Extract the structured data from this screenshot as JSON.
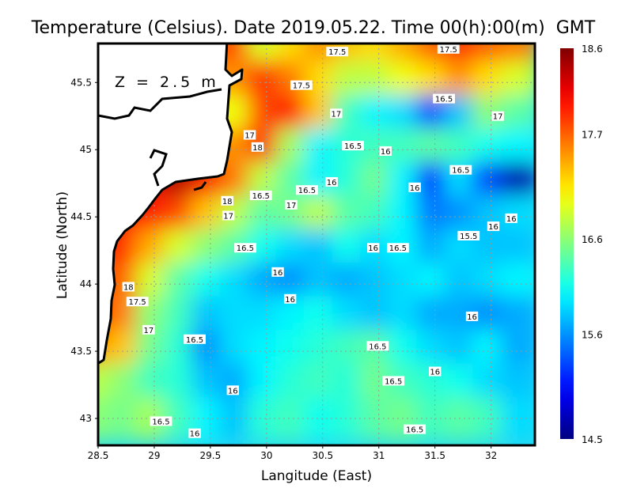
{
  "chart_data": {
    "type": "heatmap",
    "title": "Temperature (Celsius). Date 2019.05.22. Time 00(h):00(m)  GMT",
    "xlabel": "Langitude (East)",
    "ylabel": "Latitude (North)",
    "annotation": "Z = 2.5 m",
    "xlim": [
      28.5,
      32.39
    ],
    "ylim": [
      42.8,
      45.79
    ],
    "xticks": [
      28.5,
      29,
      29.5,
      30,
      30.5,
      31,
      31.5,
      32
    ],
    "xtick_labels": [
      "28.5",
      "29",
      "29.5",
      "30",
      "30.5",
      "31",
      "31.5",
      "32"
    ],
    "yticks": [
      43,
      43.5,
      44,
      44.5,
      45,
      45.5
    ],
    "ytick_labels": [
      "43",
      "43.5",
      "44",
      "44.5",
      "45",
      "45.5"
    ],
    "grid": true,
    "colorbar": {
      "range": [
        14.5,
        18.6
      ],
      "tick_values": [
        18.6,
        17.7,
        16.6,
        15.6,
        14.5
      ],
      "tick_labels": [
        "18.6",
        "17.7",
        "16.6",
        "15.6",
        "14.5"
      ],
      "colormap": "jet",
      "placement": "right"
    },
    "grid_lon": [
      28.5,
      28.75,
      29.0,
      29.25,
      29.5,
      29.75,
      30.0,
      30.25,
      30.5,
      30.75,
      31.0,
      31.25,
      31.5,
      31.75,
      32.0,
      32.25
    ],
    "grid_lat": [
      45.75,
      45.5,
      45.25,
      45.0,
      44.75,
      44.5,
      44.25,
      44.0,
      43.75,
      43.5,
      43.25,
      43.0
    ],
    "values": [
      [
        null,
        null,
        null,
        null,
        null,
        17.8,
        16.9,
        17.2,
        17.5,
        17.3,
        17.2,
        17.4,
        17.7,
        17.9,
        17.7,
        17.6
      ],
      [
        null,
        null,
        null,
        null,
        null,
        17.5,
        17.9,
        17.6,
        17.2,
        16.8,
        16.8,
        17.0,
        17.2,
        17.5,
        17.2,
        16.9
      ],
      [
        null,
        null,
        null,
        null,
        null,
        17.0,
        17.8,
        18.0,
        17.3,
        16.3,
        16.0,
        15.9,
        15.3,
        15.8,
        16.6,
        16.4
      ],
      [
        null,
        null,
        null,
        null,
        null,
        17.5,
        17.9,
        16.7,
        16.0,
        16.2,
        16.3,
        16.3,
        16.4,
        16.3,
        16.1,
        16.0
      ],
      [
        null,
        null,
        18.2,
        18.4,
        18.1,
        17.6,
        16.8,
        16.4,
        16.0,
        16.2,
        16.5,
        16.0,
        15.2,
        15.9,
        15.3,
        14.7
      ],
      [
        null,
        18.0,
        18.0,
        17.8,
        17.3,
        16.8,
        16.4,
        16.5,
        16.8,
        16.4,
        16.3,
        16.0,
        15.5,
        15.6,
        15.8,
        15.9
      ],
      [
        null,
        17.9,
        17.4,
        16.9,
        16.6,
        16.4,
        16.1,
        15.9,
        15.8,
        16.1,
        15.9,
        16.0,
        15.7,
        15.9,
        15.8,
        15.8
      ],
      [
        null,
        17.7,
        16.9,
        16.4,
        16.1,
        15.9,
        15.7,
        15.6,
        15.8,
        15.7,
        15.8,
        15.9,
        16.0,
        15.8,
        15.9,
        16.0
      ],
      [
        17.8,
        17.6,
        16.6,
        16.3,
        15.8,
        15.9,
        15.9,
        16.0,
        16.1,
        15.9,
        15.8,
        15.9,
        15.7,
        15.7,
        15.6,
        15.7
      ],
      [
        17.5,
        17.3,
        16.5,
        16.2,
        15.6,
        15.9,
        16.0,
        16.1,
        16.2,
        16.3,
        16.4,
        16.1,
        15.9,
        15.8,
        16.0,
        15.7
      ],
      [
        16.8,
        16.6,
        16.3,
        16.2,
        15.8,
        15.7,
        16.0,
        16.2,
        16.3,
        16.2,
        16.5,
        16.3,
        16.2,
        16.1,
        15.9,
        15.8
      ],
      [
        16.6,
        16.5,
        16.7,
        16.3,
        16.0,
        15.8,
        16.2,
        16.3,
        16.1,
        16.2,
        16.4,
        16.5,
        16.3,
        16.4,
        16.3,
        15.9
      ]
    ],
    "contour_labels": [
      {
        "text": "17.5",
        "lon": 30.63,
        "lat": 45.73
      },
      {
        "text": "17.5",
        "lon": 31.62,
        "lat": 45.75
      },
      {
        "text": "17.5",
        "lon": 30.31,
        "lat": 45.48
      },
      {
        "text": "16.5",
        "lon": 31.58,
        "lat": 45.38
      },
      {
        "text": "17",
        "lon": 30.62,
        "lat": 45.27
      },
      {
        "text": "17",
        "lon": 32.06,
        "lat": 45.25
      },
      {
        "text": "17",
        "lon": 29.85,
        "lat": 45.11
      },
      {
        "text": "18",
        "lon": 29.92,
        "lat": 45.02
      },
      {
        "text": "16.5",
        "lon": 30.77,
        "lat": 45.03
      },
      {
        "text": "16",
        "lon": 31.06,
        "lat": 44.99
      },
      {
        "text": "16.5",
        "lon": 31.73,
        "lat": 44.85
      },
      {
        "text": "16",
        "lon": 30.58,
        "lat": 44.76
      },
      {
        "text": "16",
        "lon": 31.32,
        "lat": 44.72
      },
      {
        "text": "16.5",
        "lon": 30.36,
        "lat": 44.7
      },
      {
        "text": "16.5",
        "lon": 29.95,
        "lat": 44.66
      },
      {
        "text": "18",
        "lon": 29.65,
        "lat": 44.62
      },
      {
        "text": "17",
        "lon": 30.22,
        "lat": 44.59
      },
      {
        "text": "17",
        "lon": 29.66,
        "lat": 44.51
      },
      {
        "text": "16",
        "lon": 32.18,
        "lat": 44.49
      },
      {
        "text": "16",
        "lon": 32.02,
        "lat": 44.43
      },
      {
        "text": "15.5",
        "lon": 31.8,
        "lat": 44.36
      },
      {
        "text": "16.5",
        "lon": 29.81,
        "lat": 44.27
      },
      {
        "text": "16",
        "lon": 30.95,
        "lat": 44.27
      },
      {
        "text": "16.5",
        "lon": 31.17,
        "lat": 44.27
      },
      {
        "text": "16",
        "lon": 30.1,
        "lat": 44.09
      },
      {
        "text": "18",
        "lon": 28.77,
        "lat": 43.98
      },
      {
        "text": "16",
        "lon": 30.21,
        "lat": 43.89
      },
      {
        "text": "17.5",
        "lon": 28.85,
        "lat": 43.87
      },
      {
        "text": "16",
        "lon": 31.83,
        "lat": 43.76
      },
      {
        "text": "17",
        "lon": 28.95,
        "lat": 43.66
      },
      {
        "text": "16.5",
        "lon": 29.36,
        "lat": 43.59
      },
      {
        "text": "16.5",
        "lon": 30.99,
        "lat": 43.54
      },
      {
        "text": "16",
        "lon": 31.5,
        "lat": 43.35
      },
      {
        "text": "16.5",
        "lon": 31.13,
        "lat": 43.28
      },
      {
        "text": "16",
        "lon": 29.7,
        "lat": 43.21
      },
      {
        "text": "16.5",
        "lon": 29.06,
        "lat": 42.98
      },
      {
        "text": "16",
        "lon": 29.36,
        "lat": 42.89
      },
      {
        "text": "16.5",
        "lon": 31.32,
        "lat": 42.92
      }
    ]
  }
}
